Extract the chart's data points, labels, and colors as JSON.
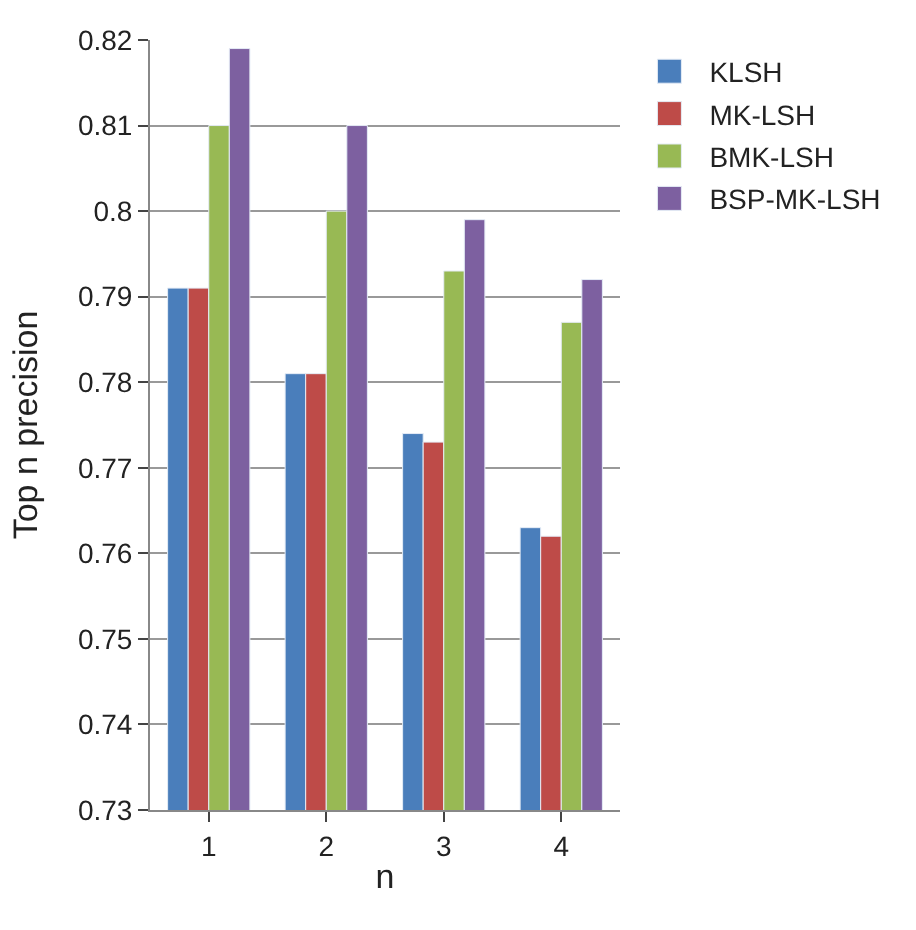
{
  "chart_data": {
    "type": "bar",
    "xlabel": "n",
    "ylabel": "Top n precision",
    "categories": [
      "1",
      "2",
      "3",
      "4"
    ],
    "series": [
      {
        "name": "KLSH",
        "color": "#4a7ebb",
        "values": [
          0.791,
          0.781,
          0.774,
          0.763
        ]
      },
      {
        "name": "MK-LSH",
        "color": "#be4b48",
        "values": [
          0.791,
          0.781,
          0.773,
          0.762
        ]
      },
      {
        "name": "BMK-LSH",
        "color": "#98b954",
        "values": [
          0.81,
          0.8,
          0.793,
          0.787
        ]
      },
      {
        "name": "BSP-MK-LSH",
        "color": "#7d60a0",
        "values": [
          0.819,
          0.81,
          0.799,
          0.792
        ]
      }
    ],
    "ylim": [
      0.73,
      0.82
    ],
    "yticks": [
      0.73,
      0.74,
      0.75,
      0.76,
      0.77,
      0.78,
      0.79,
      0.8,
      0.81,
      0.82
    ],
    "grid": "y",
    "legend": "right"
  }
}
